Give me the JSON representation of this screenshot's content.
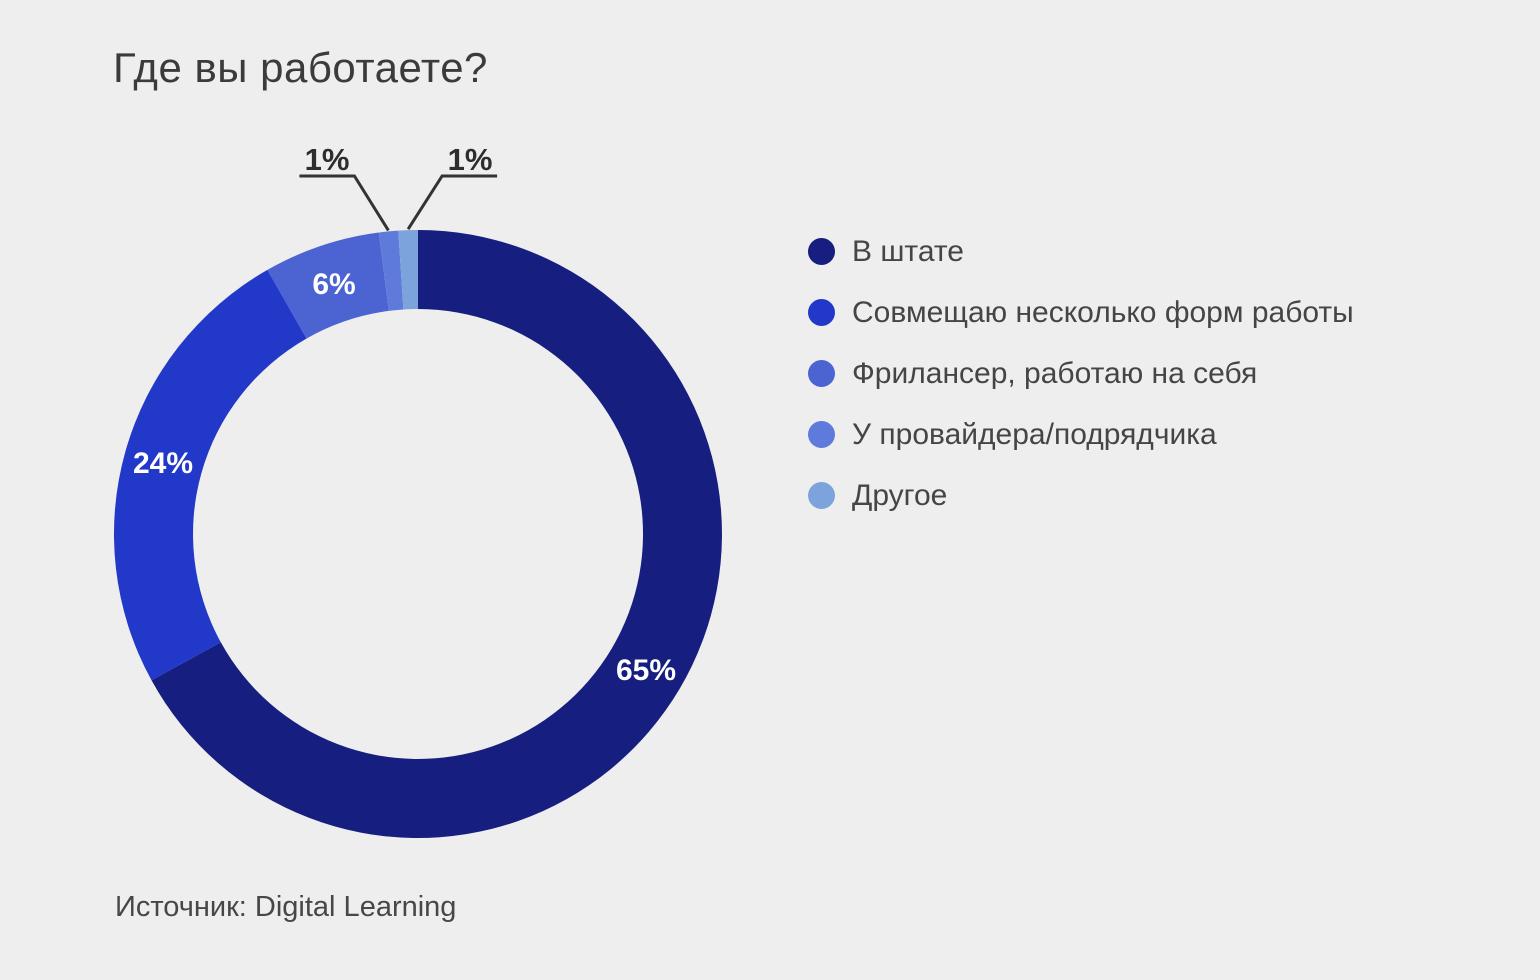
{
  "title": "Где вы работаете?",
  "source": "Источник: Digital Learning",
  "background_color": "#eeeeee",
  "chart_data": {
    "type": "pie",
    "subtype": "donut",
    "title": "Где вы работаете?",
    "categories": [
      "В штате",
      "Совмещаю несколько форм работы",
      "Фрилансер, работаю на себя",
      "У провайдера/подрядчика",
      "Другое"
    ],
    "values": [
      65,
      24,
      6,
      1,
      1
    ],
    "unit": "%",
    "data_labels": [
      "65%",
      "24%",
      "6%",
      "1%",
      "1%"
    ],
    "colors": [
      "#161e80",
      "#2238c9",
      "#4c63d2",
      "#5e7bdb",
      "#7da3dd"
    ],
    "label_placement": [
      "inside",
      "inside",
      "inside",
      "callout-left",
      "callout-right"
    ],
    "start_angle_deg": 0,
    "direction": "clockwise",
    "donut_hole_ratio": 0.74,
    "legend_position": "right",
    "grid": false,
    "source": "Источник: Digital Learning"
  }
}
